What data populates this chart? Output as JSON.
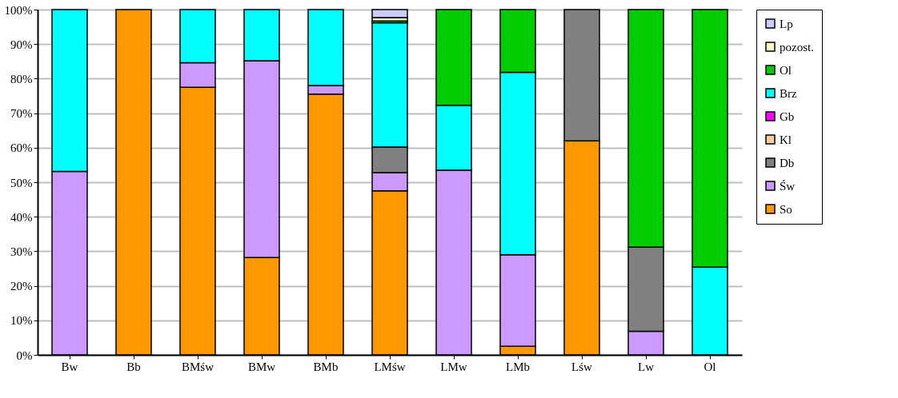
{
  "chart_data": {
    "type": "bar",
    "stacked": true,
    "categories": [
      "Bw",
      "Bb",
      "BMśw",
      "BMw",
      "BMb",
      "LMśw",
      "LMw",
      "LMb",
      "Lśw",
      "Lw",
      "Ol"
    ],
    "series": [
      {
        "name": "So",
        "color": "#ff9900",
        "values": [
          null,
          100,
          77.5,
          28.2,
          75.5,
          47.5,
          null,
          2.5,
          62,
          null,
          null
        ]
      },
      {
        "name": "Św",
        "color": "#cc99ff",
        "values": [
          53.1,
          null,
          7.1,
          57,
          2.5,
          5.3,
          53.5,
          26.5,
          null,
          6.8,
          null
        ]
      },
      {
        "name": "Db",
        "color": "#808080",
        "values": [
          null,
          null,
          null,
          null,
          null,
          7.4,
          null,
          null,
          38,
          24.4,
          null
        ]
      },
      {
        "name": "Kl",
        "color": "#ffcc99",
        "values": [
          null,
          null,
          null,
          null,
          null,
          null,
          null,
          null,
          null,
          null,
          null
        ]
      },
      {
        "name": "Gb",
        "color": "#ff00ff",
        "values": [
          null,
          null,
          null,
          null,
          null,
          null,
          null,
          null,
          null,
          null,
          null
        ]
      },
      {
        "name": "Brz",
        "color": "#00ffff",
        "values": [
          46.9,
          null,
          15.4,
          14.8,
          22,
          36,
          18.8,
          52.8,
          null,
          null,
          25.4
        ]
      },
      {
        "name": "Ol",
        "color": "#00cc00",
        "values": [
          null,
          null,
          null,
          null,
          null,
          0.5,
          27.7,
          18.2,
          null,
          68.8,
          74.6
        ]
      },
      {
        "name": "pozost.",
        "color": "#ffffcc",
        "values": [
          null,
          null,
          null,
          null,
          null,
          1,
          null,
          null,
          null,
          null,
          null
        ]
      },
      {
        "name": "Lp",
        "color": "#ccccff",
        "values": [
          null,
          null,
          null,
          null,
          null,
          2.3,
          null,
          null,
          null,
          null,
          null
        ]
      }
    ],
    "ylim": [
      0,
      100
    ],
    "yticks": [
      {
        "value": 0,
        "label": "0%"
      },
      {
        "value": 10,
        "label": "10%"
      },
      {
        "value": 20,
        "label": "20%"
      },
      {
        "value": 30,
        "label": "30%"
      },
      {
        "value": 40,
        "label": "40%"
      },
      {
        "value": 50,
        "label": "50%"
      },
      {
        "value": 60,
        "label": "60%"
      },
      {
        "value": 70,
        "label": "70%"
      },
      {
        "value": 80,
        "label": "80%"
      },
      {
        "value": 90,
        "label": "90%"
      },
      {
        "value": 100,
        "label": "100%"
      }
    ],
    "grid": "y",
    "legend": "right"
  }
}
